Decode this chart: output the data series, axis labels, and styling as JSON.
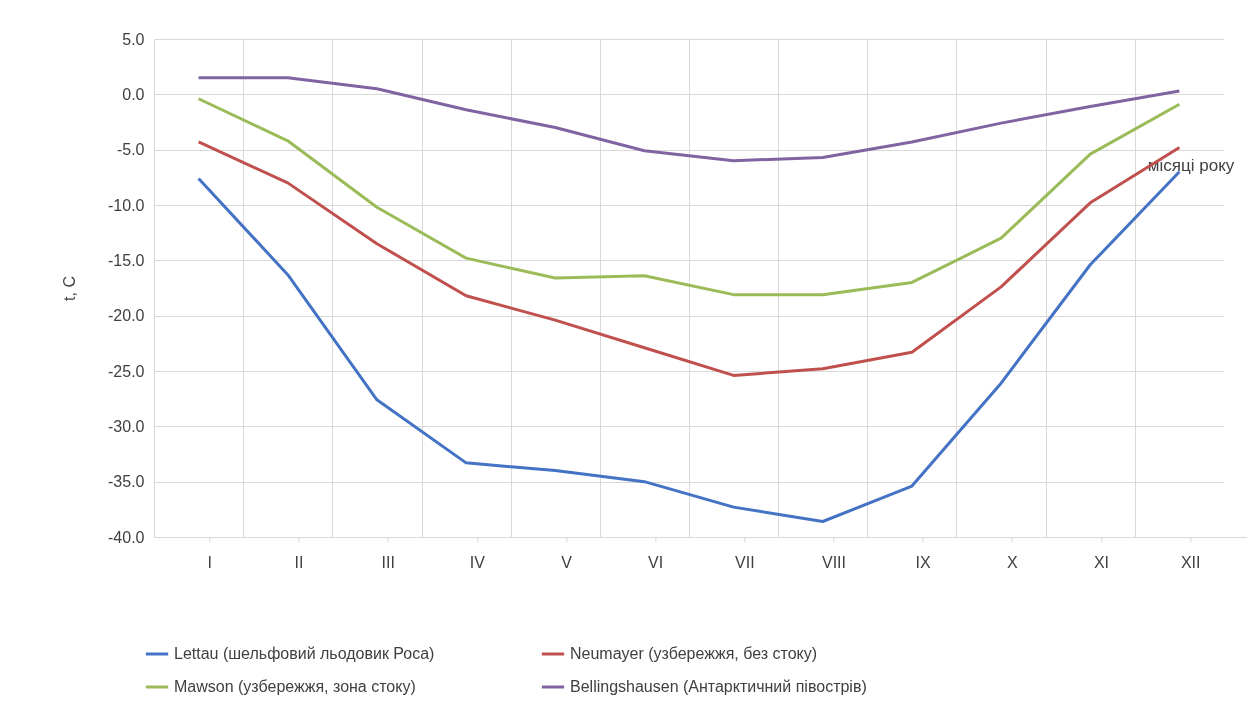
{
  "chart_data": {
    "type": "line",
    "xlabel": "місяці року",
    "ylabel": "t, C",
    "categories": [
      "I",
      "II",
      "III",
      "IV",
      "V",
      "VI",
      "VII",
      "VIII",
      "IX",
      "X",
      "XI",
      "XII"
    ],
    "series": [
      {
        "name": "Lettau (шельфовий льодовик Роса)",
        "color": "#4472c4",
        "values": [
          -7.6,
          -16.3,
          -27.6,
          -33.3,
          -34.0,
          -35.0,
          -37.3,
          -38.6,
          -35.4,
          -26.1,
          -15.4,
          -7.0
        ]
      },
      {
        "name": "Neumayer (узбережжя, без стоку)",
        "color": "#c0504d",
        "values": [
          -4.3,
          -8.0,
          -13.5,
          -18.2,
          -20.4,
          -22.9,
          -25.4,
          -24.8,
          -23.3,
          -17.4,
          -9.8,
          -4.8
        ]
      },
      {
        "name": "Mawson (узбережжя, зона стоку)",
        "color": "#9bbb59",
        "values": [
          -0.4,
          -4.2,
          -10.2,
          -14.8,
          -16.6,
          -16.4,
          -18.1,
          -18.1,
          -17.0,
          -13.0,
          -5.4,
          -0.9
        ]
      },
      {
        "name": "Bellingshausen (Антарктичний півострів)",
        "color": "#8064a2",
        "values": [
          1.5,
          1.5,
          0.5,
          -1.4,
          -3.0,
          -5.1,
          -6.0,
          -5.7,
          -4.3,
          -2.6,
          -1.1,
          0.3
        ]
      }
    ],
    "ylim": [
      -40,
      5
    ],
    "yticks": [
      {
        "value": -40,
        "label": "-40.0"
      },
      {
        "value": -35,
        "label": "-35.0"
      },
      {
        "value": -30,
        "label": "-30.0"
      },
      {
        "value": -25,
        "label": "-25.0"
      },
      {
        "value": -20,
        "label": "-20.0"
      },
      {
        "value": -15,
        "label": "-15.0"
      },
      {
        "value": -10,
        "label": "-10.0"
      },
      {
        "value": -5,
        "label": "-5.0"
      },
      {
        "value": 0,
        "label": "0.0"
      },
      {
        "value": 5,
        "label": "5.0"
      }
    ],
    "grid": true,
    "legend": "bottom",
    "marker": "none",
    "line_style": "solid"
  }
}
